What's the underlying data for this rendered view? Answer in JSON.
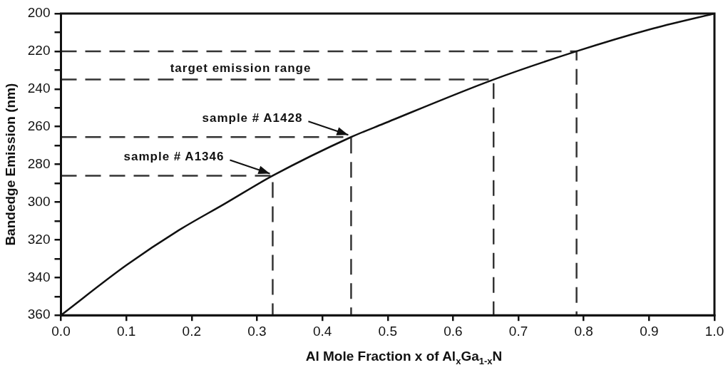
{
  "chart_data": {
    "type": "line",
    "xlabel": "Al Mole Fraction x of Al$_{x}$Ga$_{1-x}$N",
    "ylabel": "Bandedge Emission (nm)",
    "xlim": [
      0,
      1
    ],
    "ylim": [
      360,
      200
    ],
    "xticks": [
      {
        "value": 0,
        "label": "0.0"
      },
      0.1,
      0.2,
      0.3,
      0.4,
      0.5,
      0.6,
      0.7,
      0.8,
      0.9,
      {
        "value": 1,
        "label": "1.0"
      }
    ],
    "yticks": [
      200,
      {
        "value": 210,
        "label": null
      },
      220,
      {
        "value": 230,
        "label": null
      },
      240,
      {
        "value": 250,
        "label": null
      },
      260,
      {
        "value": 270,
        "label": null
      },
      280,
      {
        "value": 290,
        "label": null
      },
      300,
      {
        "value": 310,
        "label": null
      },
      320,
      {
        "value": 330,
        "label": null
      },
      340,
      {
        "value": 350,
        "label": null
      },
      360
    ],
    "grid": false,
    "legend": false,
    "marker": "none",
    "series": [
      {
        "color": "#111111",
        "line_style": "solid",
        "x": [
          0,
          0.1,
          0.18,
          0.25,
          0.324,
          0.444,
          0.493,
          0.662,
          0.789,
          0.9,
          1
        ],
        "values": [
          360,
          333.5,
          315,
          301,
          286,
          265.5,
          258.5,
          235,
          220,
          208.5,
          200
        ]
      },
      {
        "color": "#333333",
        "line_style": "dashed",
        "x": [
          0,
          0.324,
          0.324
        ],
        "values": [
          286,
          286,
          360
        ]
      },
      {
        "color": "#333333",
        "line_style": "dashed",
        "x": [
          0,
          0.444,
          0.444
        ],
        "values": [
          265.5,
          265.5,
          360
        ]
      },
      {
        "color": "#333333",
        "line_style": "dashed",
        "x": [
          0,
          0.662,
          0.662
        ],
        "values": [
          235,
          235,
          360
        ]
      },
      {
        "color": "#333333",
        "line_style": "dashed",
        "x": [
          0,
          0.789,
          0.789
        ],
        "values": [
          220,
          220,
          360
        ]
      }
    ],
    "annotations": [
      "target emission range",
      {
        "text": "sample # A1346",
        "x": 0.324,
        "y": 286
      },
      {
        "text": "sample # A1428",
        "x": 0.444,
        "y": 265.5
      }
    ]
  }
}
